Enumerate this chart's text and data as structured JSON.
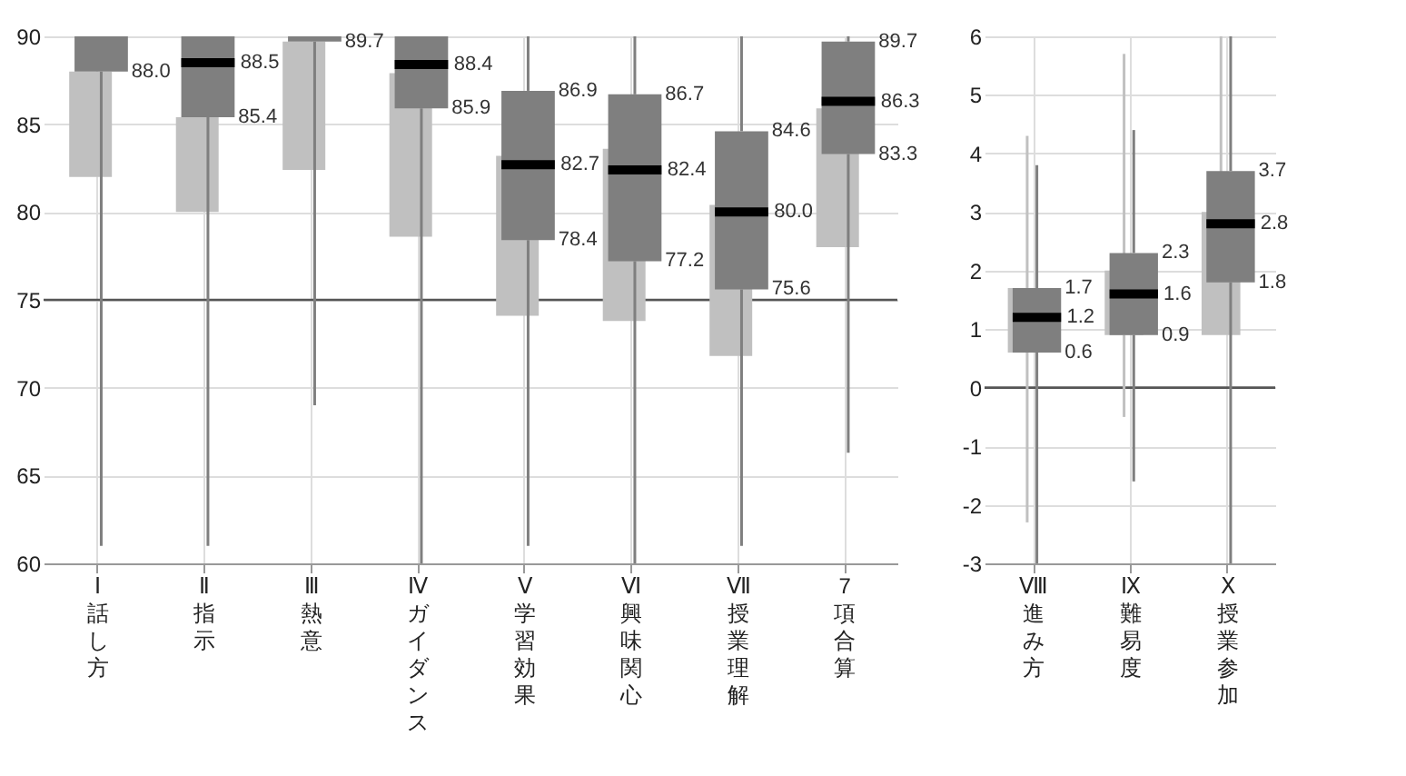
{
  "chart_data": [
    {
      "type": "box",
      "categories": [
        "Ⅰ話し方",
        "Ⅱ指示",
        "Ⅲ熱意",
        "Ⅳガイダンス",
        "Ⅴ学習効果",
        "Ⅵ興味関心",
        "Ⅶ授業理解",
        "7項合算"
      ],
      "ylim": [
        60,
        90
      ],
      "yticks": [
        60,
        65,
        70,
        75,
        80,
        85,
        90
      ],
      "grid": true,
      "ref_lines": [
        {
          "axis": "y",
          "value": 75,
          "color": "#555555"
        }
      ],
      "series": [
        {
          "color": "#c0c0c0",
          "boxes": [
            {
              "low": null,
              "q1": 82.0,
              "median": null,
              "q3": 88.0,
              "high": null
            },
            {
              "low": null,
              "q1": 80.0,
              "median": null,
              "q3": 85.4,
              "high": null
            },
            {
              "low": null,
              "q1": 82.4,
              "median": null,
              "q3": 89.7,
              "high": null
            },
            {
              "low": null,
              "q1": 78.6,
              "median": null,
              "q3": 87.9,
              "high": null
            },
            {
              "low": null,
              "q1": 74.1,
              "median": null,
              "q3": 83.2,
              "high": null
            },
            {
              "low": null,
              "q1": 73.8,
              "median": null,
              "q3": 83.6,
              "high": null
            },
            {
              "low": null,
              "q1": 71.8,
              "median": null,
              "q3": 80.4,
              "high": null
            },
            {
              "low": null,
              "q1": 78.0,
              "median": null,
              "q3": 85.9,
              "high": null
            }
          ]
        },
        {
          "color": "#7f7f7f",
          "boxes": [
            {
              "low": 61,
              "q1": 88.0,
              "median": null,
              "q3": 90,
              "high": null
            },
            {
              "low": 61,
              "q1": 85.4,
              "median": 88.5,
              "q3": 90,
              "high": null
            },
            {
              "low": 69,
              "q1": 89.7,
              "median": null,
              "q3": 90,
              "high": null
            },
            {
              "low": 60,
              "q1": 85.9,
              "median": 88.4,
              "q3": 90,
              "high": null
            },
            {
              "low": 61,
              "q1": 78.4,
              "median": 82.7,
              "q3": 86.9,
              "high": 90
            },
            {
              "low": 60,
              "q1": 77.2,
              "median": 82.4,
              "q3": 86.7,
              "high": 90
            },
            {
              "low": 61,
              "q1": 75.6,
              "median": 80.0,
              "q3": 84.6,
              "high": 90
            },
            {
              "low": 66.3,
              "q1": 83.3,
              "median": 86.3,
              "q3": 89.7,
              "high": 90
            }
          ]
        }
      ],
      "annotations": [
        {
          "text": "88.0",
          "x": "Ⅰ話し方",
          "y": 88.0
        },
        {
          "text": "88.5",
          "x": "Ⅱ指示",
          "y": 88.5
        },
        {
          "text": "85.4",
          "x": "Ⅱ指示",
          "y": 85.4
        },
        {
          "text": "89.7",
          "x": "Ⅲ熱意",
          "y": 89.7
        },
        {
          "text": "88.4",
          "x": "Ⅳガイダンス",
          "y": 88.4
        },
        {
          "text": "85.9",
          "x": "Ⅳガイダンス",
          "y": 85.9
        },
        {
          "text": "86.9",
          "x": "Ⅴ学習効果",
          "y": 86.9
        },
        {
          "text": "82.7",
          "x": "Ⅴ学習効果",
          "y": 82.7
        },
        {
          "text": "78.4",
          "x": "Ⅴ学習効果",
          "y": 78.4
        },
        {
          "text": "86.7",
          "x": "Ⅵ興味関心",
          "y": 86.7
        },
        {
          "text": "82.4",
          "x": "Ⅵ興味関心",
          "y": 82.4
        },
        {
          "text": "77.2",
          "x": "Ⅵ興味関心",
          "y": 77.2
        },
        {
          "text": "84.6",
          "x": "Ⅶ授業理解",
          "y": 84.6
        },
        {
          "text": "80.0",
          "x": "Ⅶ授業理解",
          "y": 80.0
        },
        {
          "text": "75.6",
          "x": "Ⅶ授業理解",
          "y": 75.6
        },
        {
          "text": "89.7",
          "x": "7項合算",
          "y": 89.7
        },
        {
          "text": "86.3",
          "x": "7項合算",
          "y": 86.3
        },
        {
          "text": "83.3",
          "x": "7項合算",
          "y": 83.3
        }
      ]
    },
    {
      "type": "box",
      "categories": [
        "Ⅷ進み方",
        "Ⅸ難易度",
        "Ⅹ授業参加"
      ],
      "ylim": [
        -3,
        6
      ],
      "yticks": [
        -3,
        -2,
        -1,
        0,
        1,
        2,
        3,
        4,
        5,
        6
      ],
      "grid": true,
      "ref_lines": [
        {
          "axis": "y",
          "value": 0,
          "color": "#555555"
        }
      ],
      "series": [
        {
          "color": "#c0c0c0",
          "boxes": [
            {
              "low": -2.3,
              "q1": 0.6,
              "median": null,
              "q3": 1.7,
              "high": 4.3
            },
            {
              "low": -0.5,
              "q1": 0.9,
              "median": null,
              "q3": 2.0,
              "high": 5.7
            },
            {
              "low": null,
              "q1": 0.9,
              "median": null,
              "q3": 3.0,
              "high": 6
            }
          ]
        },
        {
          "color": "#7f7f7f",
          "boxes": [
            {
              "low": -3,
              "q1": 0.6,
              "median": 1.2,
              "q3": 1.7,
              "high": 3.8
            },
            {
              "low": -1.6,
              "q1": 0.9,
              "median": 1.6,
              "q3": 2.3,
              "high": 4.4
            },
            {
              "low": -3,
              "q1": 1.8,
              "median": 2.8,
              "q3": 3.7,
              "high": 6
            }
          ]
        }
      ],
      "annotations": [
        {
          "text": "1.7",
          "x": "Ⅷ進み方",
          "y": 1.7
        },
        {
          "text": "1.2",
          "x": "Ⅷ進み方",
          "y": 1.2
        },
        {
          "text": "0.6",
          "x": "Ⅷ進み方",
          "y": 0.6
        },
        {
          "text": "2.3",
          "x": "Ⅸ難易度",
          "y": 2.3
        },
        {
          "text": "1.6",
          "x": "Ⅸ難易度",
          "y": 1.6
        },
        {
          "text": "0.9",
          "x": "Ⅸ難易度",
          "y": 0.9
        },
        {
          "text": "3.7",
          "x": "Ⅹ授業参加",
          "y": 3.7
        },
        {
          "text": "2.8",
          "x": "Ⅹ授業参加",
          "y": 2.8
        },
        {
          "text": "1.8",
          "x": "Ⅹ授業参加",
          "y": 1.8
        }
      ]
    }
  ]
}
